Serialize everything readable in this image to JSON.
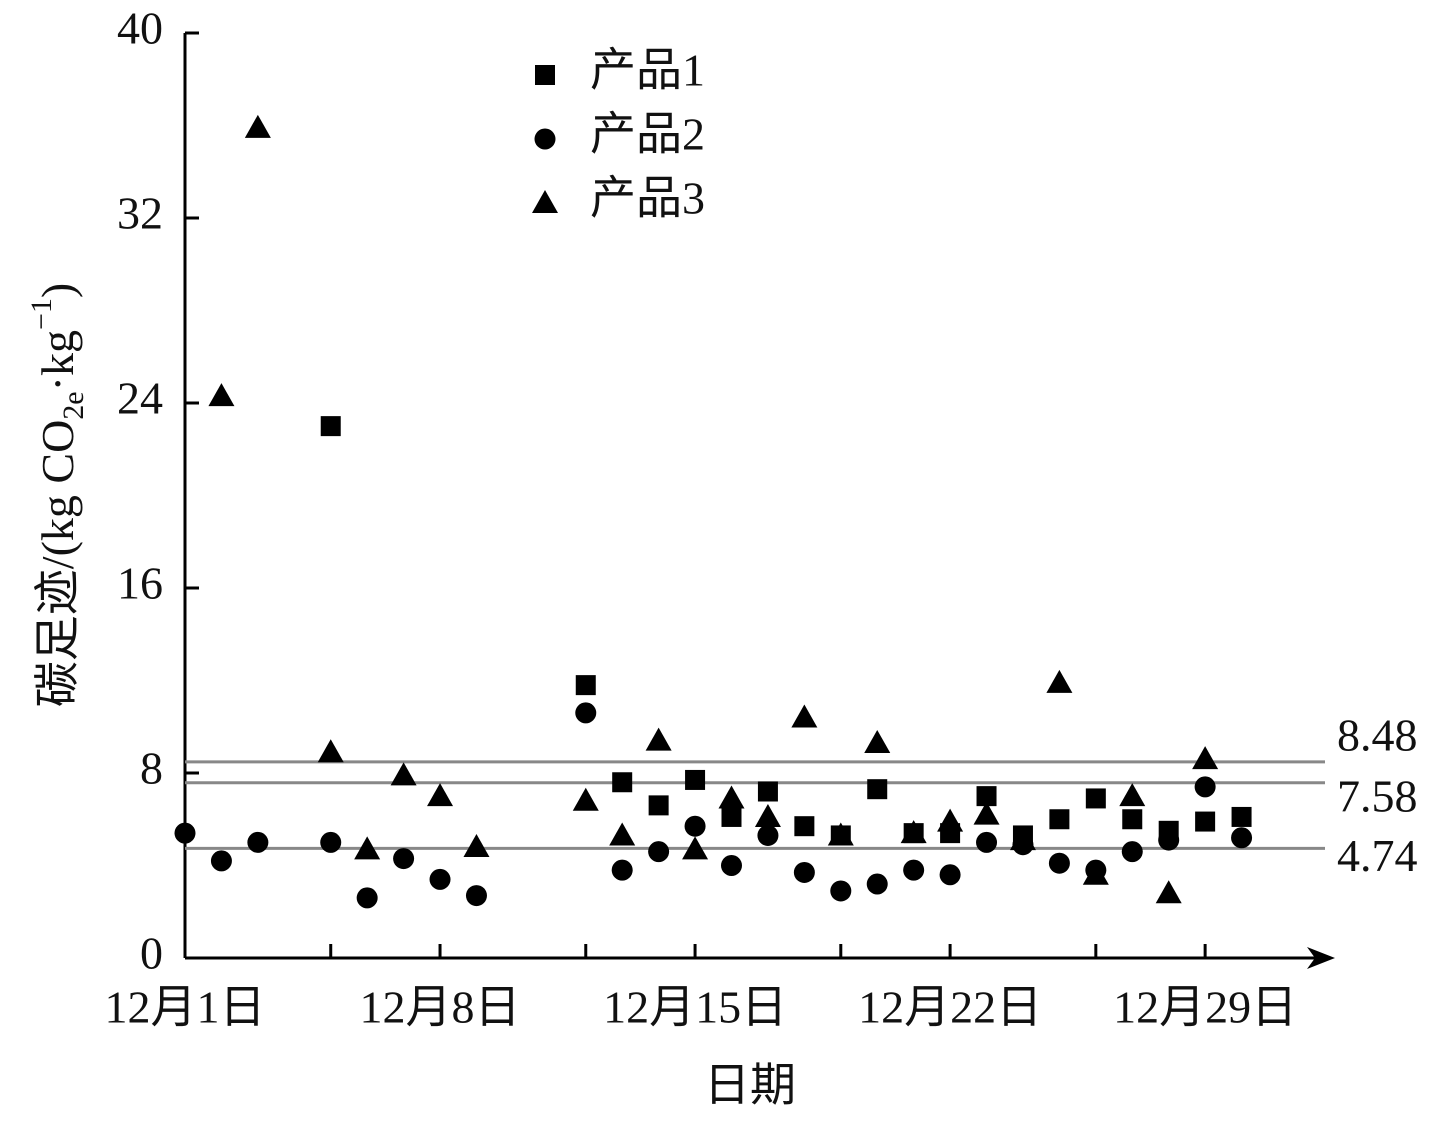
{
  "chart_data": {
    "type": "scatter",
    "xlabel": "日期",
    "ylabel_parts": [
      "碳足迹/(kg CO",
      "2e",
      "·kg",
      "−1",
      ")"
    ],
    "xlim": [
      1,
      32.4
    ],
    "ylim": [
      0,
      40
    ],
    "yticks": [
      0,
      8,
      16,
      24,
      32,
      40
    ],
    "xticks": [
      {
        "value": 1,
        "label": "12月1日"
      },
      {
        "value": 8,
        "label": "12月8日"
      },
      {
        "value": 15,
        "label": "12月15日"
      },
      {
        "value": 22,
        "label": "12月22日"
      },
      {
        "value": 29,
        "label": "12月29日"
      }
    ],
    "xminor_ticks": [
      5,
      12,
      19,
      26
    ],
    "hlines": [
      8.48,
      7.58,
      4.74
    ],
    "hline_color": "#888888",
    "legend": "upper center",
    "series": [
      {
        "name": "产品1",
        "color": "#000000",
        "marker": "square",
        "x": [
          5,
          12,
          13,
          14,
          15,
          16,
          17,
          18,
          19,
          20,
          21,
          22,
          23,
          24,
          25,
          26,
          27,
          28,
          29,
          30
        ],
        "values": [
          23.0,
          11.8,
          7.6,
          6.6,
          7.7,
          6.1,
          7.2,
          5.7,
          5.3,
          7.3,
          5.4,
          5.4,
          7.0,
          5.3,
          6.0,
          6.9,
          6.0,
          5.5,
          5.9,
          6.1
        ]
      },
      {
        "name": "产品2",
        "color": "#000000",
        "marker": "circle",
        "x": [
          1,
          2,
          3,
          5,
          6,
          7,
          8,
          9,
          12,
          13,
          14,
          15,
          16,
          17,
          18,
          19,
          20,
          21,
          22,
          23,
          24,
          25,
          26,
          27,
          28,
          29,
          30
        ],
        "values": [
          5.4,
          4.2,
          5.0,
          5.0,
          2.6,
          4.3,
          3.4,
          2.7,
          10.6,
          3.8,
          4.6,
          5.7,
          4.0,
          5.3,
          3.7,
          2.9,
          3.2,
          3.8,
          3.6,
          5.0,
          4.9,
          4.1,
          3.8,
          4.6,
          5.1,
          7.4,
          5.2
        ]
      },
      {
        "name": "产品3",
        "color": "#000000",
        "marker": "triangle",
        "x": [
          2,
          3,
          5,
          6,
          7,
          8,
          9,
          12,
          13,
          14,
          15,
          16,
          17,
          18,
          19,
          20,
          21,
          22,
          23,
          24,
          25,
          26,
          27,
          28,
          29
        ],
        "values": [
          24.3,
          35.9,
          8.9,
          4.7,
          7.9,
          7.0,
          4.8,
          6.8,
          5.3,
          9.4,
          4.7,
          6.9,
          6.1,
          10.4,
          5.3,
          9.3,
          5.4,
          5.9,
          6.2,
          5.1,
          11.9,
          3.6,
          7.0,
          2.8,
          8.6
        ]
      }
    ]
  }
}
